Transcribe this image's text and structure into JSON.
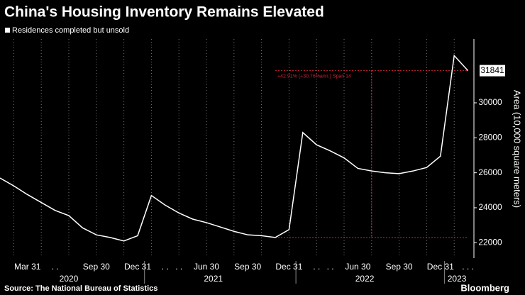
{
  "chart_data": {
    "type": "line",
    "title": "China's Housing Inventory Remains Elevated",
    "y_label": "Area (10,000 square meters)",
    "source": "Source: The National Bureau of Statistics",
    "brand": "Bloomberg",
    "categories": [
      null,
      null,
      "Mar 31",
      null,
      ". .",
      null,
      null,
      "Sep 30",
      null,
      null,
      "Dec 31",
      null,
      ". .",
      ". .",
      null,
      "Jun 30",
      null,
      null,
      "Sep 30",
      null,
      null,
      "Dec 31",
      null,
      ". .",
      ". .",
      null,
      "Jun 30",
      null,
      null,
      "Sep 30",
      null,
      null,
      "Dec 31",
      null,
      ". . ."
    ],
    "x_groups": [
      "2020",
      "2021",
      "2022",
      "2023"
    ],
    "series": [
      {
        "name": "Residences completed but unsold",
        "color": "#ffffff",
        "values": [
          25700,
          25250,
          24750,
          24300,
          23850,
          23550,
          22850,
          22450,
          22300,
          22100,
          22400,
          24700,
          24150,
          23700,
          23350,
          23150,
          22900,
          22650,
          22450,
          22400,
          22300,
          22750,
          28300,
          27600,
          27250,
          26850,
          26250,
          26100,
          26000,
          25950,
          26100,
          26300,
          26950,
          32700,
          31841
        ]
      }
    ],
    "annotation": {
      "text": "+42.91% (+30.76%ann.) Span 14",
      "color": "#d0203a"
    },
    "ylim": [
      21200,
      33650
    ],
    "yticks": [
      22000,
      24000,
      26000,
      28000,
      30000
    ]
  }
}
